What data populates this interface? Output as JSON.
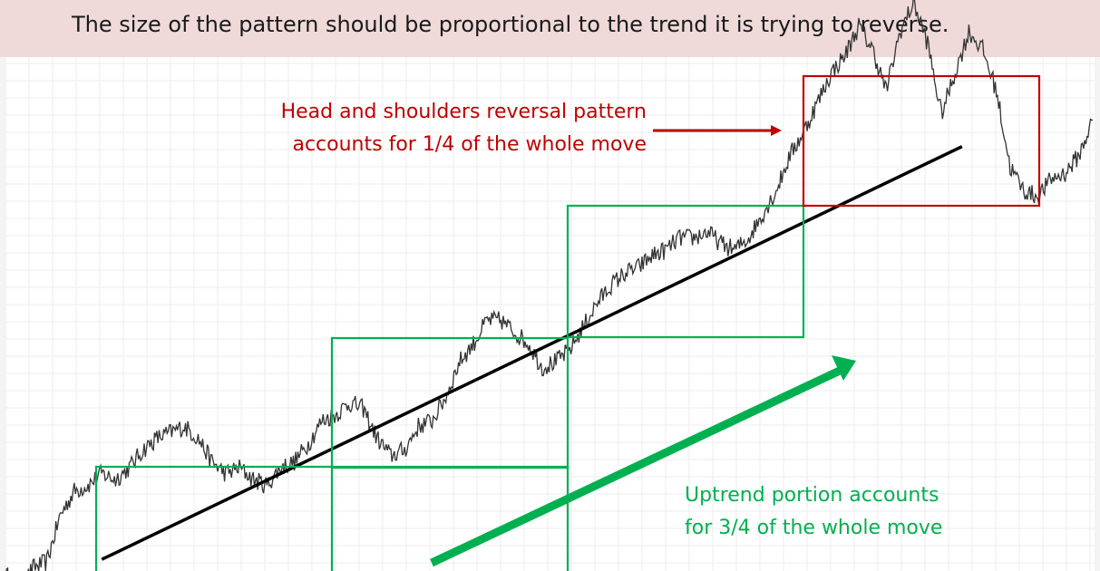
{
  "banner": {
    "text": "The size of the pattern should be proportional to the trend it is trying to reverse."
  },
  "annotations": {
    "reversal_line1": "Head and shoulders reversal pattern",
    "reversal_line2": "accounts for 1/4 of the whole move",
    "uptrend_line1": "Uptrend portion accounts",
    "uptrend_line2": "for 3/4 of the whole move"
  },
  "colors": {
    "banner_bg": "#efd9d9",
    "reversal": "#c00000",
    "uptrend": "#00b050",
    "trendline": "#000000",
    "price": "#333333",
    "grid": "#eeeeee"
  },
  "chart_data": {
    "type": "line",
    "series": [
      {
        "values": [
          98,
          95,
          99,
          100,
          108,
          112,
          113,
          115,
          114,
          116,
          119,
          121,
          122,
          123,
          121,
          117,
          115,
          116,
          114,
          113,
          116,
          117,
          120,
          124,
          125,
          127,
          126,
          121,
          118,
          119,
          123,
          124,
          128,
          134,
          137,
          141,
          141,
          139,
          137,
          133,
          134,
          136,
          140,
          144,
          147,
          149,
          150,
          152,
          153,
          155,
          155,
          156,
          154,
          153,
          155,
          159,
          163,
          169,
          173,
          178,
          183,
          186,
          191,
          187,
          180,
          190,
          195,
          188,
          176,
          183,
          190,
          187,
          180,
          167,
          163,
          162,
          165,
          166,
          169,
          175
        ]
      }
    ],
    "trendline": {
      "from": [
        0,
        94
      ],
      "to": [
        80,
        178
      ]
    }
  }
}
